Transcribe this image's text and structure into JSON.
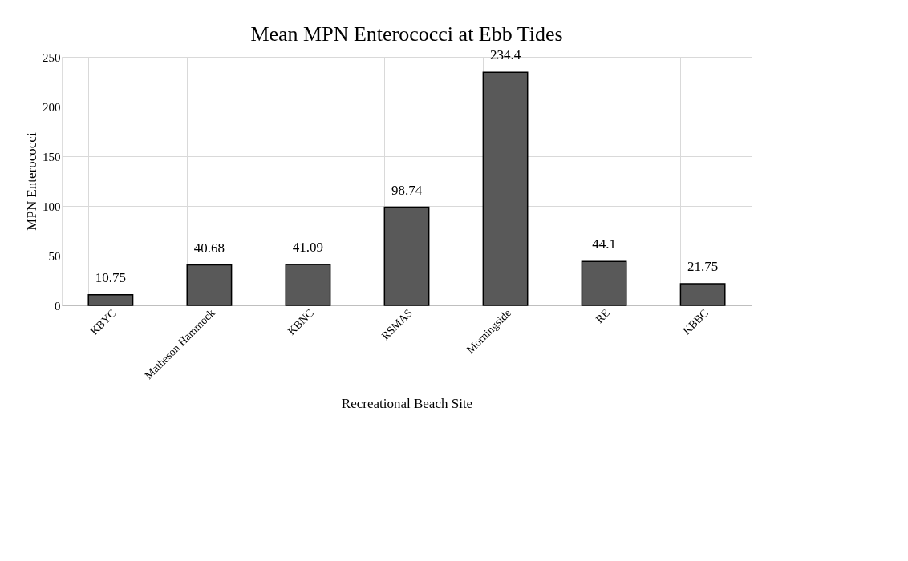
{
  "chart_data": {
    "type": "bar",
    "title": "Mean MPN Enterococci at Ebb Tides",
    "xlabel": "Recreational Beach Site",
    "ylabel": "MPN Enterococci",
    "categories": [
      "KBYC",
      "Matheson Hammock",
      "KBNC",
      "RSMAS",
      "Morningside",
      "RE",
      "KBBC"
    ],
    "values": [
      10.75,
      40.68,
      41.09,
      98.74,
      234.4,
      44.1,
      21.75
    ],
    "color": "#595959",
    "ylim": [
      0,
      250
    ],
    "yticks": [
      0,
      50,
      100,
      150,
      200,
      250
    ],
    "grid": true,
    "data_labels": true
  }
}
